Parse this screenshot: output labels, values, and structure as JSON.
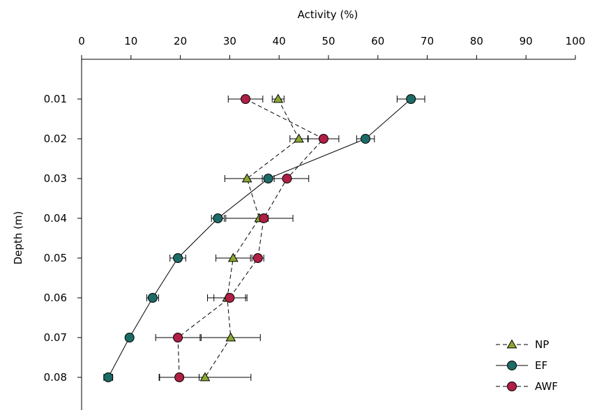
{
  "chart_data": {
    "type": "scatter",
    "xlabel": "Activity (%)",
    "ylabel": "Depth (m)",
    "xlim": [
      0,
      100
    ],
    "ylim": [
      0.08,
      0.01
    ],
    "x_ticks": [
      "0",
      "10",
      "20",
      "30",
      "40",
      "50",
      "60",
      "70",
      "80",
      "90",
      "100"
    ],
    "y_ticks": [
      "0.01",
      "0.02",
      "0.03",
      "0.04",
      "0.05",
      "0.06",
      "0.07",
      "0.08"
    ],
    "x_axis_position": "top",
    "y_axis_inverted": true,
    "grid": false,
    "legend_position": "bottom-right",
    "series": [
      {
        "name": "NP",
        "marker": "triangle",
        "line": "dashed",
        "color": "#8aa832",
        "points": [
          {
            "depth": 0.01,
            "activity": 39.8,
            "err": 1.2
          },
          {
            "depth": 0.02,
            "activity": 44.0,
            "err": 1.8
          },
          {
            "depth": 0.03,
            "activity": 33.5,
            "err": 4.5
          },
          {
            "depth": 0.04,
            "activity": 36.0,
            "err": 6.8
          },
          {
            "depth": 0.05,
            "activity": 30.7,
            "err": 3.5
          },
          {
            "depth": 0.06,
            "activity": 29.5,
            "err": 4.0
          },
          {
            "depth": 0.07,
            "activity": 30.2,
            "err": 6.0
          },
          {
            "depth": 0.08,
            "activity": 25.0,
            "err": 9.3
          }
        ]
      },
      {
        "name": "EF",
        "marker": "circle",
        "line": "solid",
        "color": "#1d6b66",
        "points": [
          {
            "depth": 0.01,
            "activity": 66.7,
            "err": 2.8
          },
          {
            "depth": 0.02,
            "activity": 57.5,
            "err": 1.8
          },
          {
            "depth": 0.03,
            "activity": 37.8,
            "err": 1.2
          },
          {
            "depth": 0.04,
            "activity": 27.6,
            "err": 1.3
          },
          {
            "depth": 0.05,
            "activity": 19.5,
            "err": 1.6
          },
          {
            "depth": 0.06,
            "activity": 14.4,
            "err": 1.2
          },
          {
            "depth": 0.07,
            "activity": 9.7,
            "err": 0.5
          },
          {
            "depth": 0.08,
            "activity": 5.4,
            "err": 0.9
          }
        ]
      },
      {
        "name": "AWF",
        "marker": "circle",
        "line": "dashed",
        "color": "#b01f45",
        "points": [
          {
            "depth": 0.01,
            "activity": 33.2,
            "err": 3.5
          },
          {
            "depth": 0.02,
            "activity": 49.0,
            "err": 3.1
          },
          {
            "depth": 0.03,
            "activity": 41.6,
            "err": 4.4
          },
          {
            "depth": 0.04,
            "activity": 36.9,
            "err": 0.9
          },
          {
            "depth": 0.05,
            "activity": 35.7,
            "err": 1.2
          },
          {
            "depth": 0.06,
            "activity": 30.0,
            "err": 3.2
          },
          {
            "depth": 0.07,
            "activity": 19.5,
            "err": 4.5
          },
          {
            "depth": 0.08,
            "activity": 19.8,
            "err": 4.0
          }
        ]
      }
    ]
  }
}
